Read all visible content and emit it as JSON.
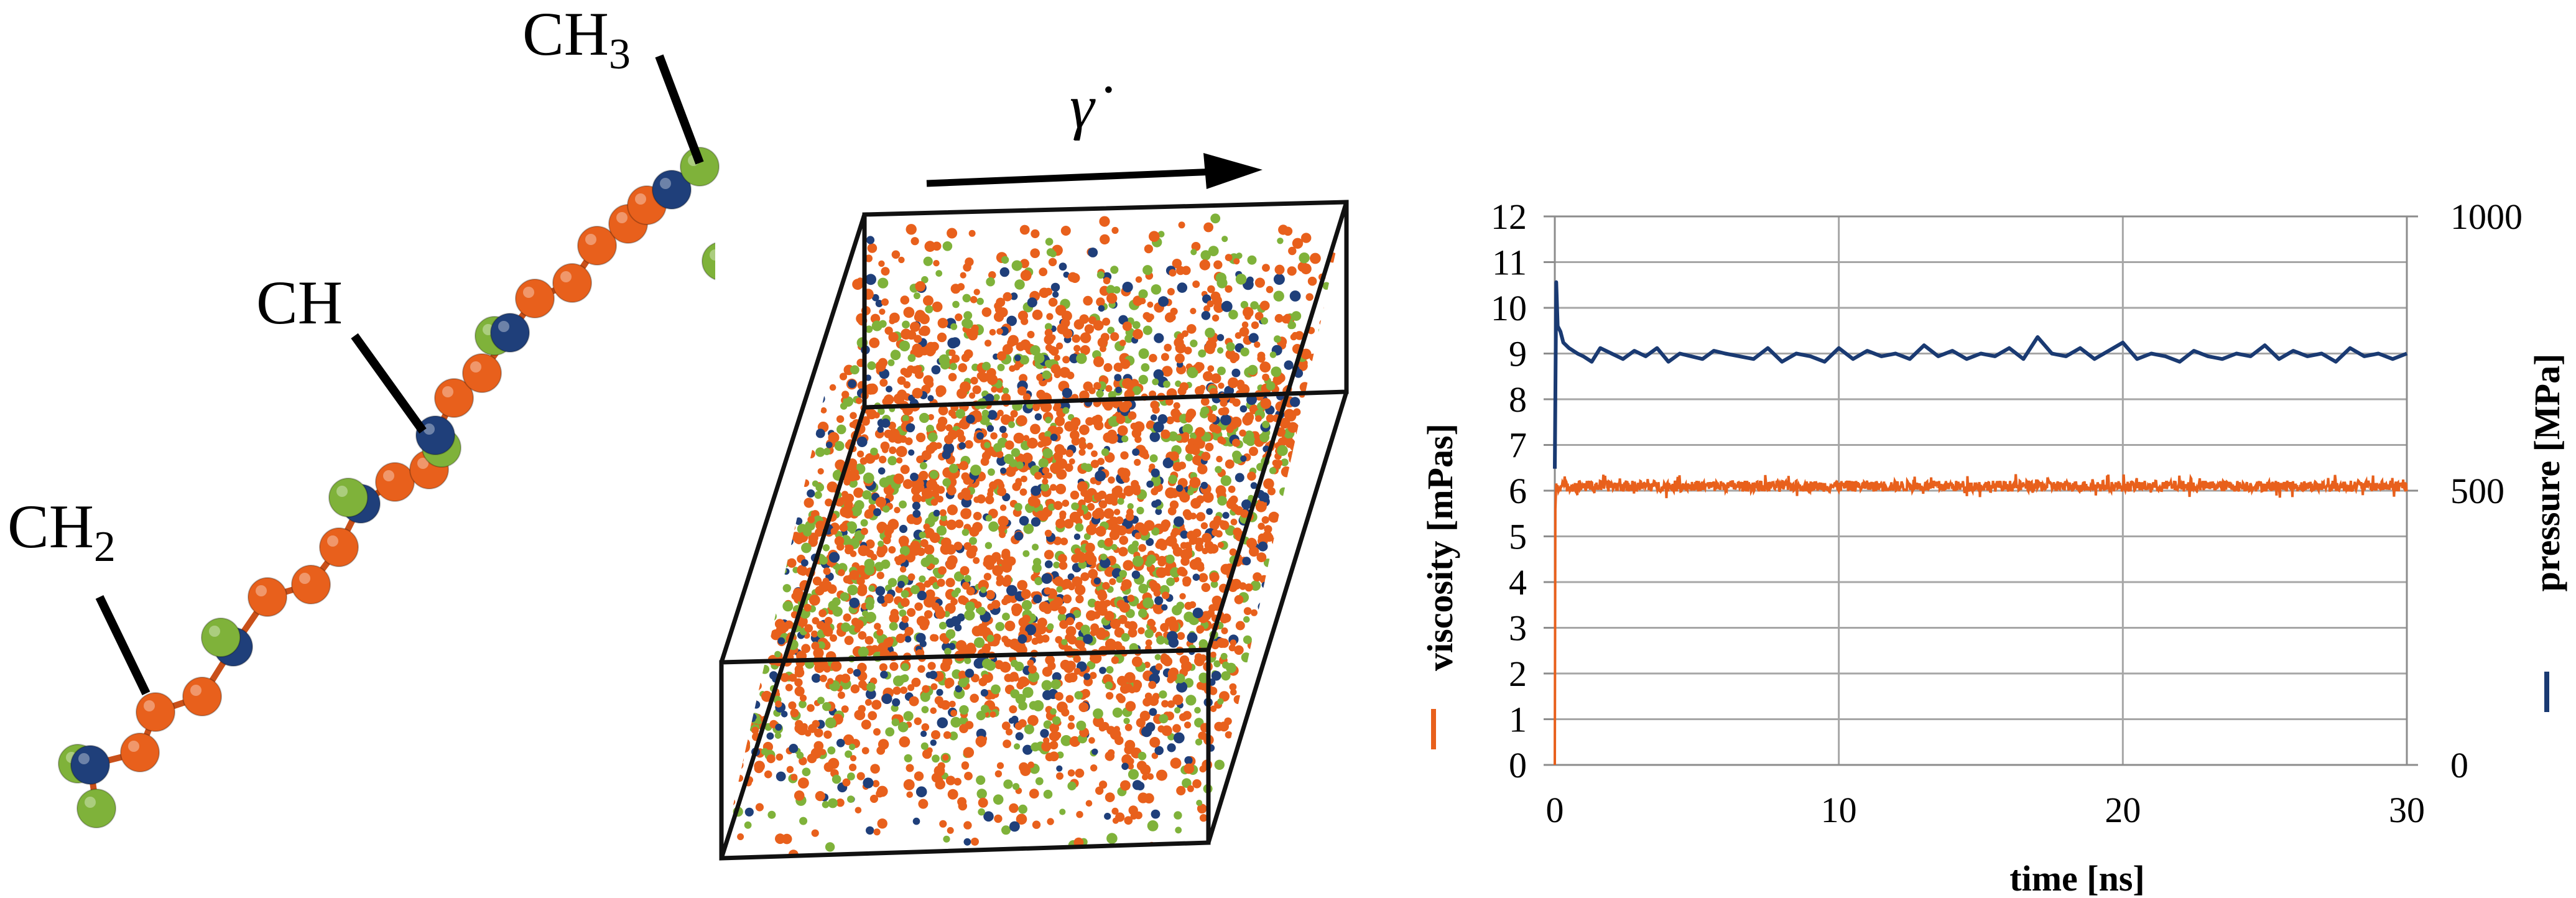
{
  "molecule": {
    "labels": {
      "ch3": "CH",
      "ch3_sub": "3",
      "ch": "CH",
      "ch2": "CH",
      "ch2_sub": "2"
    },
    "colors": {
      "ch2": "#e8601c",
      "ch": "#1f3f7a",
      "ch3": "#7fb23a"
    }
  },
  "simulation_box": {
    "shear_rate_symbol": "γ̇",
    "colors": {
      "ch2": "#e8601c",
      "ch": "#1f3f7a",
      "ch3": "#7fb23a"
    }
  },
  "chart_data": {
    "type": "line",
    "title": "",
    "xlabel": "time [ns]",
    "ylabel_left": "viscosity [mPas]",
    "ylabel_right": "pressure [MPa]",
    "xlim": [
      0,
      30
    ],
    "ylim_left": [
      0,
      12
    ],
    "ylim_right": [
      0,
      1000
    ],
    "x_ticks": [
      "0",
      "10",
      "20",
      "30"
    ],
    "y_left_ticks": [
      "0",
      "1",
      "2",
      "3",
      "4",
      "5",
      "6",
      "7",
      "8",
      "9",
      "10",
      "11",
      "12"
    ],
    "y_right_ticks": [
      "0",
      "500",
      "1000"
    ],
    "grid": true,
    "series": [
      {
        "name": "viscosity [mPas]",
        "axis": "left",
        "color": "#e8601c",
        "mean": 6.1,
        "noise": 0.12,
        "x": [
          0,
          0.02,
          0.05,
          30
        ],
        "values": [
          0,
          5.6,
          6.1,
          6.1
        ]
      },
      {
        "name": "pressure [MPa]",
        "axis": "right",
        "color": "#1a3a72",
        "x": [
          0,
          0.05,
          0.1,
          0.2,
          0.3,
          0.5,
          0.8,
          1,
          1.3,
          1.6,
          2,
          2.4,
          2.8,
          3.2,
          3.6,
          4,
          4.4,
          4.8,
          5.2,
          5.6,
          6,
          6.5,
          7,
          7.5,
          8,
          8.5,
          9,
          9.5,
          10,
          10.5,
          11,
          11.5,
          12,
          12.5,
          13,
          13.5,
          14,
          14.5,
          15,
          15.5,
          16,
          16.5,
          17,
          17.5,
          18,
          18.5,
          19,
          19.5,
          20,
          20.5,
          21,
          21.5,
          22,
          22.5,
          23,
          23.5,
          24,
          24.5,
          25,
          25.5,
          26,
          26.5,
          27,
          27.5,
          28,
          28.5,
          29,
          29.5,
          30
        ],
        "values": [
          540,
          880,
          800,
          790,
          770,
          760,
          750,
          745,
          735,
          760,
          750,
          740,
          755,
          745,
          760,
          735,
          750,
          745,
          740,
          755,
          750,
          745,
          740,
          760,
          735,
          750,
          745,
          735,
          760,
          740,
          755,
          745,
          750,
          740,
          765,
          745,
          755,
          740,
          750,
          745,
          760,
          740,
          780,
          750,
          745,
          760,
          740,
          755,
          770,
          740,
          750,
          745,
          735,
          755,
          745,
          740,
          750,
          745,
          765,
          740,
          755,
          745,
          750,
          735,
          760,
          745,
          750,
          740,
          750
        ]
      }
    ]
  }
}
